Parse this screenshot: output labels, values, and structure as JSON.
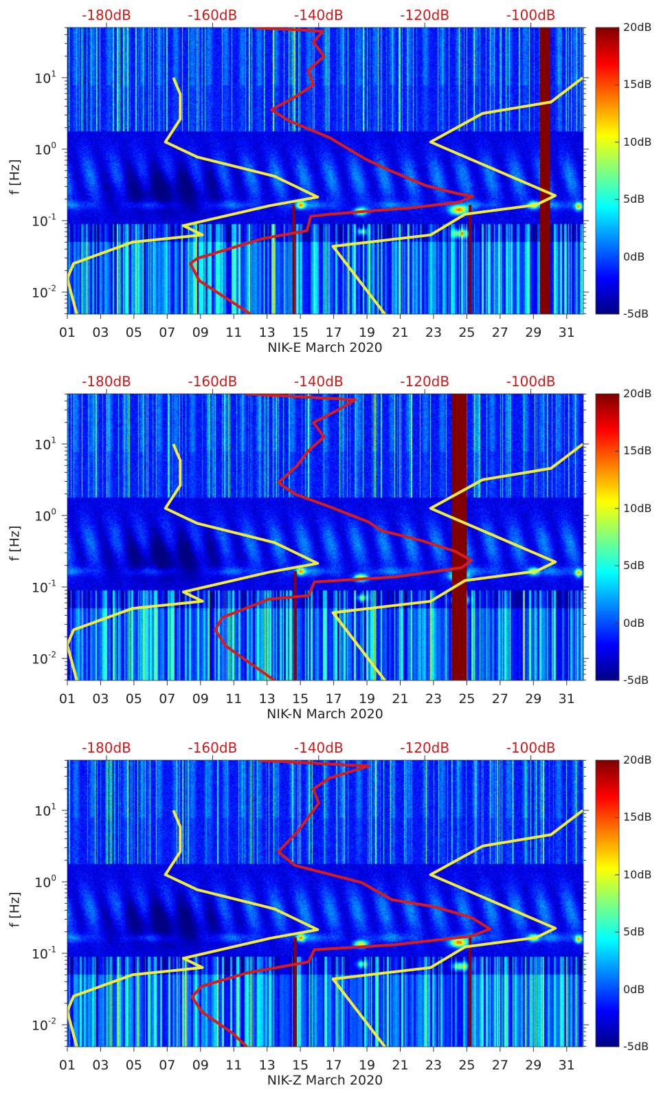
{
  "chart_data": [
    {
      "type": "heatmap",
      "title": "",
      "xlabel": "NIK-E March 2020",
      "ylabel": "f [Hz]",
      "x_tick_labels": [
        "01",
        "03",
        "05",
        "07",
        "09",
        "11",
        "13",
        "15",
        "17",
        "19",
        "21",
        "23",
        "25",
        "27",
        "29",
        "31"
      ],
      "x_range_day": [
        1,
        32
      ],
      "y_scale": "log",
      "y_range_log10_hz": [
        -2.31,
        1.7
      ],
      "y_tick_labels": [
        {
          "base": "10",
          "exp": "1"
        },
        {
          "base": "10",
          "exp": "0"
        },
        {
          "base": "10",
          "exp": "-1"
        },
        {
          "base": "10",
          "exp": "-2"
        }
      ],
      "top_axis_labels": [
        "-180dB",
        "-160dB",
        "-140dB",
        "-120dB",
        "-100dB"
      ],
      "top_axis_range_db": [
        -187.4,
        -90.1
      ],
      "colorbar": {
        "labels": [
          "20dB",
          "15dB",
          "10dB",
          "5dB",
          "0dB",
          "-5dB"
        ],
        "range_db": [
          -5,
          20
        ],
        "colormap": "jet"
      },
      "saturated_bands_day": [
        [
          29.4,
          30.0
        ]
      ],
      "saturated_lines_day": [
        14.6,
        25.2
      ],
      "series": [
        {
          "name": "low-noise-model",
          "color": "#f4ec3c",
          "points_db_log10f": [
            [
              -167.4,
              1.0
            ],
            [
              -166.1,
              0.77
            ],
            [
              -166.1,
              0.42
            ],
            [
              -168.9,
              0.1
            ],
            [
              -162.9,
              -0.11
            ],
            [
              -148.3,
              -0.38
            ],
            [
              -140.2,
              -0.67
            ],
            [
              -149.2,
              -0.79
            ],
            [
              -165.5,
              -1.07
            ],
            [
              -161.9,
              -1.2
            ],
            [
              -175.1,
              -1.3
            ],
            [
              -186.2,
              -1.6
            ],
            [
              -187.4,
              -1.81
            ],
            [
              -185.6,
              -2.31
            ]
          ]
        },
        {
          "name": "high-noise-model",
          "color": "#f4ec3c",
          "points_db_log10f": [
            [
              -90.2,
              1.0
            ],
            [
              -96.2,
              0.66
            ],
            [
              -109.1,
              0.5
            ],
            [
              -118.9,
              0.1
            ],
            [
              -95.4,
              -0.65
            ],
            [
              -99.0,
              -0.78
            ],
            [
              -112.4,
              -0.91
            ],
            [
              -118.9,
              -1.2
            ],
            [
              -137.3,
              -1.36
            ],
            [
              -127.5,
              -2.31
            ]
          ]
        },
        {
          "name": "station-psd",
          "color": "#d81c1c",
          "points_db_log10f": [
            [
              -152.2,
              1.7
            ],
            [
              -139.2,
              1.65
            ],
            [
              -141,
              1.5
            ],
            [
              -139,
              1.3
            ],
            [
              -142,
              1.1
            ],
            [
              -141,
              0.9
            ],
            [
              -144,
              0.75
            ],
            [
              -148.9,
              0.55
            ],
            [
              -145.7,
              0.4
            ],
            [
              -137.9,
              0.16
            ],
            [
              -131.4,
              -0.13
            ],
            [
              -127.5,
              -0.27
            ],
            [
              -119.8,
              -0.51
            ],
            [
              -113.9,
              -0.62
            ],
            [
              -111.0,
              -0.66
            ],
            [
              -113.5,
              -0.74
            ],
            [
              -122.4,
              -0.82
            ],
            [
              -137.9,
              -0.91
            ],
            [
              -141.5,
              -0.94
            ],
            [
              -142.2,
              -1.14
            ],
            [
              -150.5,
              -1.25
            ],
            [
              -162.9,
              -1.53
            ],
            [
              -164.2,
              -1.6
            ],
            [
              -162.5,
              -1.84
            ],
            [
              -152.8,
              -2.31
            ]
          ]
        }
      ]
    },
    {
      "type": "heatmap",
      "title": "",
      "xlabel": "NIK-N March 2020",
      "ylabel": "f [Hz]",
      "x_tick_labels": [
        "01",
        "03",
        "05",
        "07",
        "09",
        "11",
        "13",
        "15",
        "17",
        "19",
        "21",
        "23",
        "25",
        "27",
        "29",
        "31"
      ],
      "x_range_day": [
        1,
        32
      ],
      "y_scale": "log",
      "y_range_log10_hz": [
        -2.31,
        1.7
      ],
      "y_tick_labels": [
        {
          "base": "10",
          "exp": "1"
        },
        {
          "base": "10",
          "exp": "0"
        },
        {
          "base": "10",
          "exp": "-1"
        },
        {
          "base": "10",
          "exp": "-2"
        }
      ],
      "top_axis_labels": [
        "-180dB",
        "-160dB",
        "-140dB",
        "-120dB",
        "-100dB"
      ],
      "top_axis_range_db": [
        -187.4,
        -90.1
      ],
      "colorbar": {
        "labels": [
          "20dB",
          "15dB",
          "10dB",
          "5dB",
          "0dB",
          "-5dB"
        ],
        "range_db": [
          -5,
          20
        ],
        "colormap": "jet"
      },
      "saturated_bands_day": [
        [
          24.1,
          25.0
        ]
      ],
      "saturated_lines_day": [
        14.7
      ],
      "series": [
        {
          "name": "low-noise-model",
          "color": "#f4ec3c",
          "points_db_log10f": [
            [
              -167.4,
              1.0
            ],
            [
              -166.1,
              0.77
            ],
            [
              -166.1,
              0.42
            ],
            [
              -168.9,
              0.1
            ],
            [
              -162.9,
              -0.11
            ],
            [
              -148.3,
              -0.38
            ],
            [
              -140.2,
              -0.67
            ],
            [
              -149.2,
              -0.79
            ],
            [
              -165.5,
              -1.07
            ],
            [
              -161.9,
              -1.2
            ],
            [
              -175.1,
              -1.3
            ],
            [
              -186.2,
              -1.6
            ],
            [
              -187.4,
              -1.81
            ],
            [
              -185.6,
              -2.31
            ]
          ]
        },
        {
          "name": "high-noise-model",
          "color": "#f4ec3c",
          "points_db_log10f": [
            [
              -90.2,
              1.0
            ],
            [
              -96.2,
              0.66
            ],
            [
              -109.1,
              0.5
            ],
            [
              -118.9,
              0.1
            ],
            [
              -95.4,
              -0.65
            ],
            [
              -99.0,
              -0.78
            ],
            [
              -112.4,
              -0.91
            ],
            [
              -118.9,
              -1.2
            ],
            [
              -137.3,
              -1.36
            ],
            [
              -127.5,
              -2.31
            ]
          ]
        },
        {
          "name": "station-psd",
          "color": "#d81c1c",
          "points_db_log10f": [
            [
              -153.8,
              1.7
            ],
            [
              -133.1,
              1.62
            ],
            [
              -137,
              1.45
            ],
            [
              -141,
              1.3
            ],
            [
              -139,
              1.1
            ],
            [
              -142,
              0.9
            ],
            [
              -144,
              0.7
            ],
            [
              -147.6,
              0.46
            ],
            [
              -144.5,
              0.3
            ],
            [
              -138.2,
              0.13
            ],
            [
              -130.6,
              -0.09
            ],
            [
              -128.2,
              -0.21
            ],
            [
              -120.7,
              -0.35
            ],
            [
              -114.3,
              -0.5
            ],
            [
              -111.2,
              -0.63
            ],
            [
              -113.0,
              -0.73
            ],
            [
              -125.6,
              -0.86
            ],
            [
              -140.8,
              -0.93
            ],
            [
              -141.9,
              -1.12
            ],
            [
              -149.4,
              -1.17
            ],
            [
              -158.2,
              -1.43
            ],
            [
              -159.5,
              -1.6
            ],
            [
              -157.6,
              -1.82
            ],
            [
              -148.3,
              -2.31
            ]
          ]
        }
      ]
    },
    {
      "type": "heatmap",
      "title": "",
      "xlabel": "NIK-Z March 2020",
      "ylabel": "f [Hz]",
      "x_tick_labels": [
        "01",
        "03",
        "05",
        "07",
        "09",
        "11",
        "13",
        "15",
        "17",
        "19",
        "21",
        "23",
        "25",
        "27",
        "29",
        "31"
      ],
      "x_range_day": [
        1,
        32
      ],
      "y_scale": "log",
      "y_range_log10_hz": [
        -2.31,
        1.7
      ],
      "y_tick_labels": [
        {
          "base": "10",
          "exp": "1"
        },
        {
          "base": "10",
          "exp": "0"
        },
        {
          "base": "10",
          "exp": "-1"
        },
        {
          "base": "10",
          "exp": "-2"
        }
      ],
      "top_axis_labels": [
        "-180dB",
        "-160dB",
        "-140dB",
        "-120dB",
        "-100dB"
      ],
      "top_axis_range_db": [
        -187.4,
        -90.1
      ],
      "colorbar": {
        "labels": [
          "20dB",
          "15dB",
          "10dB",
          "5dB",
          "0dB",
          "-5dB"
        ],
        "range_db": [
          -5,
          20
        ],
        "colormap": "jet"
      },
      "saturated_bands_day": [],
      "saturated_lines_day": [
        14.7,
        25.2
      ],
      "series": [
        {
          "name": "low-noise-model",
          "color": "#f4ec3c",
          "points_db_log10f": [
            [
              -167.4,
              1.0
            ],
            [
              -166.1,
              0.77
            ],
            [
              -166.1,
              0.42
            ],
            [
              -168.9,
              0.1
            ],
            [
              -162.9,
              -0.11
            ],
            [
              -148.3,
              -0.38
            ],
            [
              -140.2,
              -0.67
            ],
            [
              -149.2,
              -0.79
            ],
            [
              -165.5,
              -1.07
            ],
            [
              -161.9,
              -1.2
            ],
            [
              -175.1,
              -1.3
            ],
            [
              -186.2,
              -1.6
            ],
            [
              -187.4,
              -1.81
            ],
            [
              -185.6,
              -2.31
            ]
          ]
        },
        {
          "name": "high-noise-model",
          "color": "#f4ec3c",
          "points_db_log10f": [
            [
              -90.2,
              1.0
            ],
            [
              -96.2,
              0.66
            ],
            [
              -109.1,
              0.5
            ],
            [
              -118.9,
              0.1
            ],
            [
              -95.4,
              -0.65
            ],
            [
              -99.0,
              -0.78
            ],
            [
              -112.4,
              -0.91
            ],
            [
              -118.9,
              -1.2
            ],
            [
              -137.3,
              -1.36
            ],
            [
              -127.5,
              -2.31
            ]
          ]
        },
        {
          "name": "station-psd",
          "color": "#d81c1c",
          "points_db_log10f": [
            [
              -151.4,
              1.7
            ],
            [
              -130.6,
              1.62
            ],
            [
              -138,
              1.45
            ],
            [
              -141,
              1.3
            ],
            [
              -140,
              1.1
            ],
            [
              -142,
              0.9
            ],
            [
              -144,
              0.7
            ],
            [
              -147.6,
              0.42
            ],
            [
              -144.5,
              0.23
            ],
            [
              -131.9,
              -0.01
            ],
            [
              -126.2,
              -0.25
            ],
            [
              -118.1,
              -0.35
            ],
            [
              -111.2,
              -0.5
            ],
            [
              -107.7,
              -0.66
            ],
            [
              -111.2,
              -0.76
            ],
            [
              -125.6,
              -0.88
            ],
            [
              -140.8,
              -0.95
            ],
            [
              -141.9,
              -1.12
            ],
            [
              -153.3,
              -1.27
            ],
            [
              -162.0,
              -1.46
            ],
            [
              -163.9,
              -1.61
            ],
            [
              -162.0,
              -1.82
            ],
            [
              -156.4,
              -2.11
            ],
            [
              -153.5,
              -2.31
            ]
          ]
        }
      ]
    }
  ]
}
